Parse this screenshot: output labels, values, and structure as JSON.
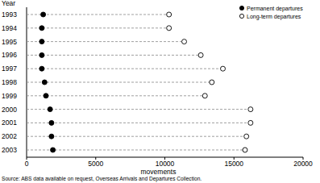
{
  "chart_data": {
    "type": "dot",
    "orientation": "horizontal",
    "y_label": "Year",
    "x_label": "movements",
    "source": "Source: ABS data available on request, Overseas Arrivals and Departures Collection.",
    "categories": [
      "1993",
      "1994",
      "1995",
      "1996",
      "1997",
      "1998",
      "1999",
      "2000",
      "2001",
      "2002",
      "2003"
    ],
    "series": [
      {
        "name": "Permanent departures",
        "color": "#000000",
        "marker": "filled",
        "values": [
          1200,
          1100,
          1100,
          1100,
          1100,
          1300,
          1400,
          1700,
          1800,
          1800,
          1900
        ]
      },
      {
        "name": "Long-term departures",
        "color": "#000000",
        "marker": "open",
        "values": [
          10300,
          10300,
          11400,
          12600,
          14200,
          13400,
          12900,
          16200,
          16200,
          15900,
          15800
        ]
      }
    ],
    "xlim": [
      0,
      20000
    ],
    "xticks": [
      0,
      5000,
      10000,
      15000,
      20000
    ],
    "legend": "top right",
    "grid": false
  }
}
